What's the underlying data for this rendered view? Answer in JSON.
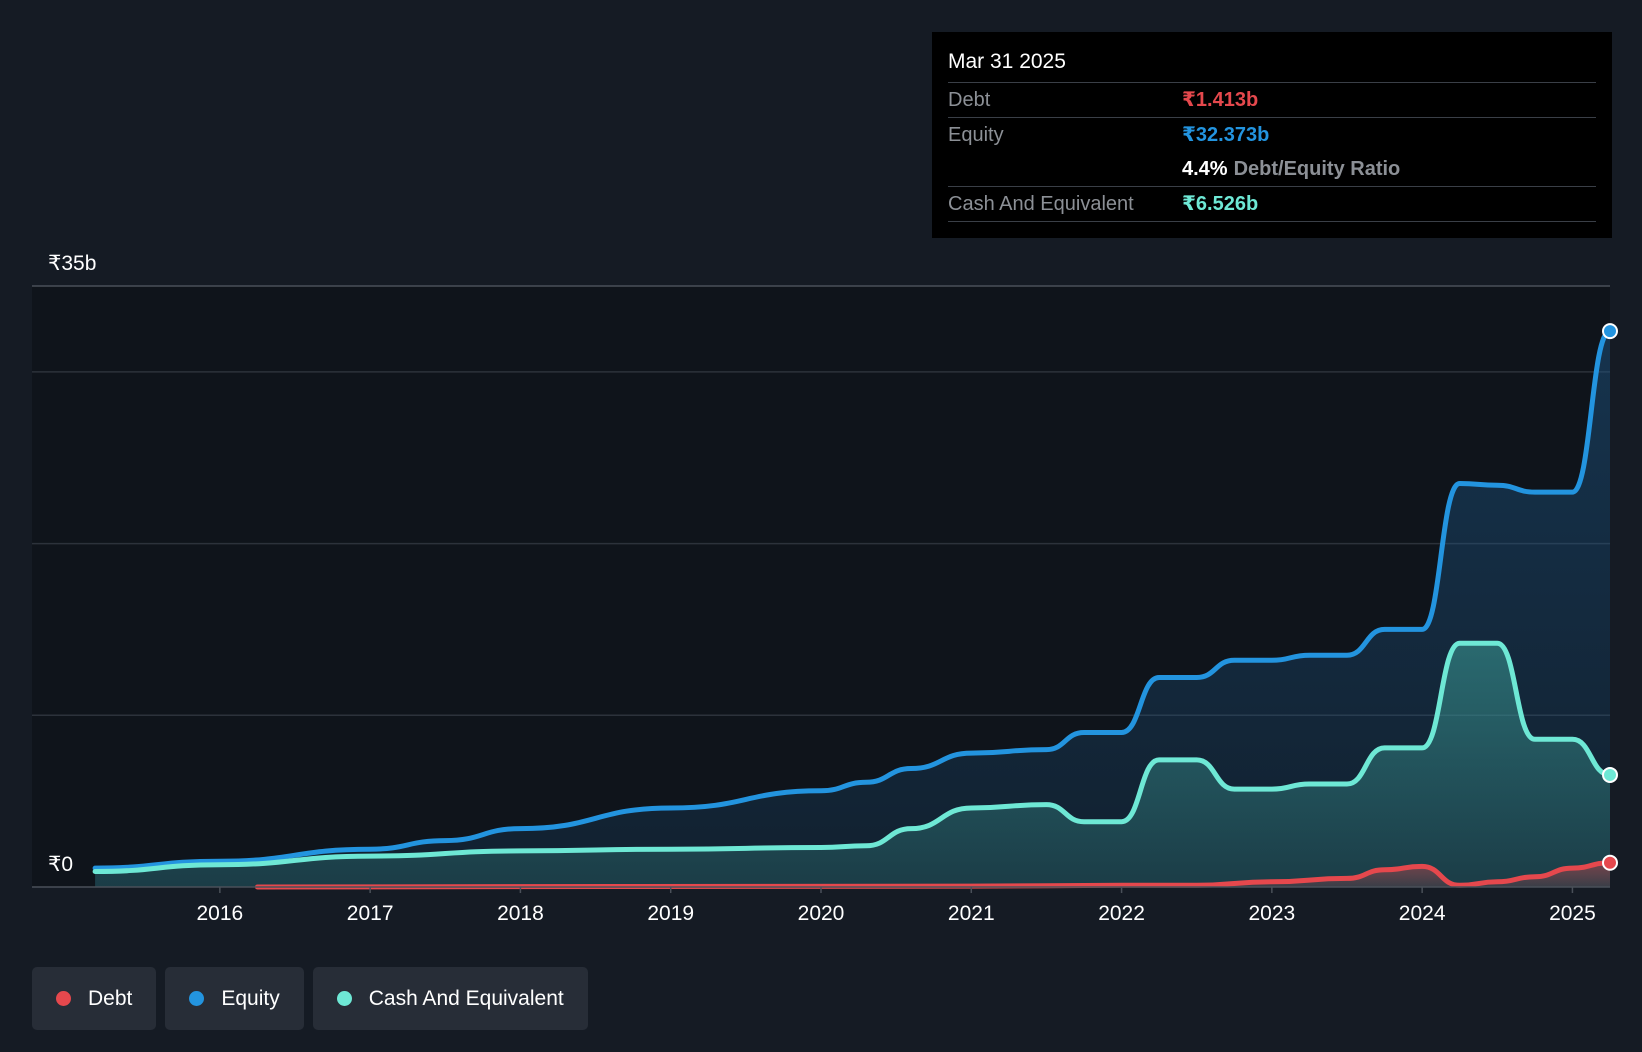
{
  "colors": {
    "debt": "#e5484d",
    "equity": "#2394df",
    "cash": "#6ee8d5",
    "background": "#151b24",
    "plot_background": "#0f141b",
    "grid": "#2c323b",
    "text": "#ffffff",
    "muted": "#8c9096"
  },
  "tooltip": {
    "date": "Mar 31 2025",
    "debt_label": "Debt",
    "debt_value": "₹1.413b",
    "equity_label": "Equity",
    "equity_value": "₹32.373b",
    "ratio_value": "4.4%",
    "ratio_label": "Debt/Equity Ratio",
    "cash_label": "Cash And Equivalent",
    "cash_value": "₹6.526b"
  },
  "legend": [
    {
      "label": "Debt",
      "color": "#e5484d"
    },
    {
      "label": "Equity",
      "color": "#2394df"
    },
    {
      "label": "Cash And Equivalent",
      "color": "#6ee8d5"
    }
  ],
  "chart_data": {
    "type": "area",
    "title": "",
    "xlabel": "",
    "ylabel": "",
    "unit": "₹ billions",
    "xlim": [
      2014.75,
      2025.25
    ],
    "ylim": [
      0,
      35
    ],
    "y_tick_labels": [
      {
        "value": 35,
        "label": "₹35b"
      },
      {
        "value": 0,
        "label": "₹0"
      }
    ],
    "gridlines": [
      35,
      30,
      20,
      10
    ],
    "x_ticks": [
      2016,
      2017,
      2018,
      2019,
      2020,
      2021,
      2022,
      2023,
      2024,
      2025
    ],
    "series": [
      {
        "name": "Equity",
        "color": "#2394df",
        "points": [
          [
            2015.17,
            1.1
          ],
          [
            2016.0,
            1.5
          ],
          [
            2017.0,
            2.2
          ],
          [
            2017.5,
            2.7
          ],
          [
            2018.0,
            3.4
          ],
          [
            2019.0,
            4.6
          ],
          [
            2020.0,
            5.6
          ],
          [
            2020.3,
            6.1
          ],
          [
            2020.6,
            6.9
          ],
          [
            2021.0,
            7.8
          ],
          [
            2021.5,
            8.0
          ],
          [
            2021.75,
            9.0
          ],
          [
            2022.0,
            9.0
          ],
          [
            2022.25,
            12.2
          ],
          [
            2022.5,
            12.2
          ],
          [
            2022.75,
            13.2
          ],
          [
            2023.0,
            13.2
          ],
          [
            2023.25,
            13.5
          ],
          [
            2023.5,
            13.5
          ],
          [
            2023.75,
            15.0
          ],
          [
            2024.0,
            15.0
          ],
          [
            2024.25,
            23.5
          ],
          [
            2024.5,
            23.4
          ],
          [
            2024.75,
            23.0
          ],
          [
            2025.0,
            23.0
          ],
          [
            2025.25,
            32.373
          ]
        ],
        "end_marker": true
      },
      {
        "name": "Cash And Equivalent",
        "color": "#6ee8d5",
        "points": [
          [
            2015.17,
            0.9
          ],
          [
            2016.0,
            1.3
          ],
          [
            2017.0,
            1.8
          ],
          [
            2018.0,
            2.1
          ],
          [
            2019.0,
            2.2
          ],
          [
            2020.0,
            2.3
          ],
          [
            2020.3,
            2.4
          ],
          [
            2020.6,
            3.4
          ],
          [
            2021.0,
            4.6
          ],
          [
            2021.5,
            4.8
          ],
          [
            2021.75,
            3.8
          ],
          [
            2022.0,
            3.8
          ],
          [
            2022.25,
            7.4
          ],
          [
            2022.5,
            7.4
          ],
          [
            2022.75,
            5.7
          ],
          [
            2023.0,
            5.7
          ],
          [
            2023.25,
            6.0
          ],
          [
            2023.5,
            6.0
          ],
          [
            2023.75,
            8.1
          ],
          [
            2024.0,
            8.1
          ],
          [
            2024.25,
            14.2
          ],
          [
            2024.5,
            14.2
          ],
          [
            2024.75,
            8.6
          ],
          [
            2025.0,
            8.6
          ],
          [
            2025.25,
            6.526
          ]
        ],
        "end_marker": true
      },
      {
        "name": "Debt",
        "color": "#e5484d",
        "points": [
          [
            2016.25,
            0.0
          ],
          [
            2021.0,
            0.05
          ],
          [
            2022.0,
            0.1
          ],
          [
            2022.5,
            0.1
          ],
          [
            2023.0,
            0.3
          ],
          [
            2023.5,
            0.5
          ],
          [
            2023.75,
            1.0
          ],
          [
            2024.0,
            1.2
          ],
          [
            2024.25,
            0.1
          ],
          [
            2024.5,
            0.3
          ],
          [
            2024.75,
            0.6
          ],
          [
            2025.0,
            1.1
          ],
          [
            2025.25,
            1.413
          ]
        ],
        "end_marker": true
      }
    ]
  }
}
